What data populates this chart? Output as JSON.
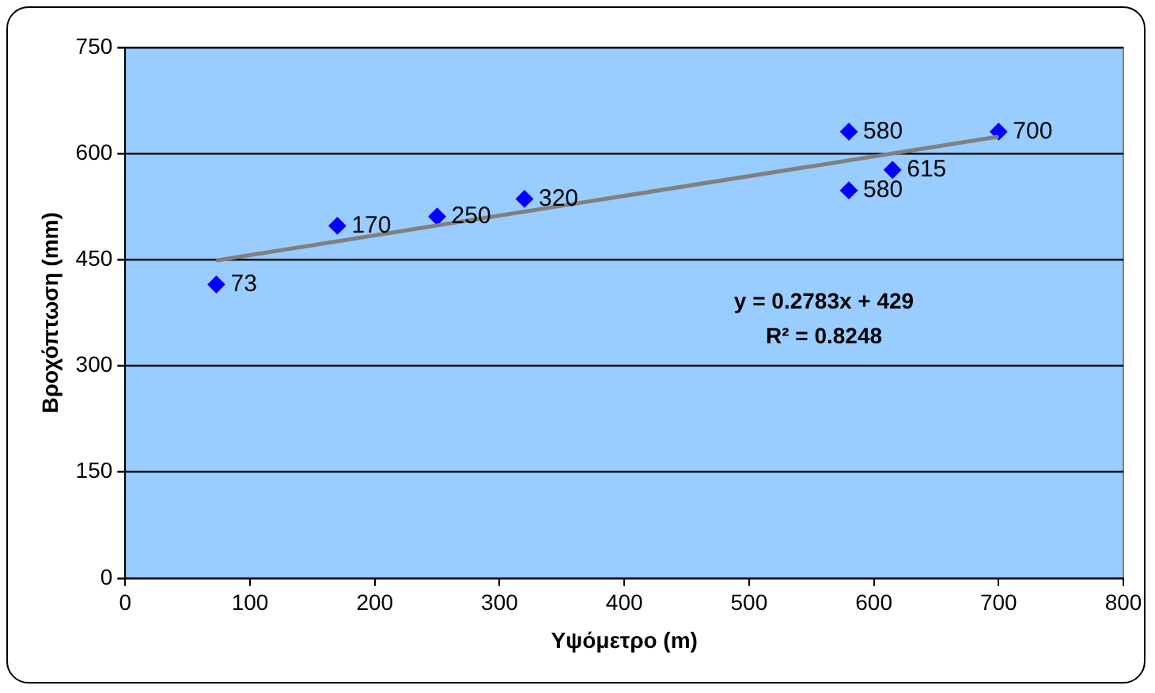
{
  "chart_data": {
    "type": "scatter",
    "xlabel": "Υψόμετρο (m)",
    "ylabel": "Βροχόπτωση (mm)",
    "xlim": [
      0,
      800
    ],
    "xticks": [
      0,
      100,
      200,
      300,
      400,
      500,
      600,
      700,
      800
    ],
    "ylim": [
      0,
      750
    ],
    "yticks": [
      0,
      150,
      300,
      450,
      600,
      750
    ],
    "grid": "y",
    "legend": false,
    "series": [
      {
        "color": "#0000ff",
        "marker": "diamond",
        "x": [
          73,
          170,
          250,
          320,
          580,
          580,
          615,
          700
        ],
        "values": [
          415,
          498,
          511,
          536,
          631,
          548,
          577,
          631
        ]
      },
      {
        "type": "line",
        "color": "#808080",
        "x": [
          73,
          700
        ],
        "values": [
          449,
          624
        ]
      }
    ],
    "annotations": [
      {
        "text": "73",
        "x": 73,
        "y": 415
      },
      {
        "text": "170",
        "x": 170,
        "y": 498
      },
      {
        "text": "250",
        "x": 250,
        "y": 511
      },
      {
        "text": "320",
        "x": 320,
        "y": 536
      },
      {
        "text": "580",
        "x": 580,
        "y": 631
      },
      {
        "text": "580",
        "x": 580,
        "y": 548
      },
      {
        "text": "615",
        "x": 615,
        "y": 577
      },
      {
        "text": "700",
        "x": 700,
        "y": 631
      },
      "y = 0.2783x + 429",
      "R² = 0.8248"
    ]
  }
}
